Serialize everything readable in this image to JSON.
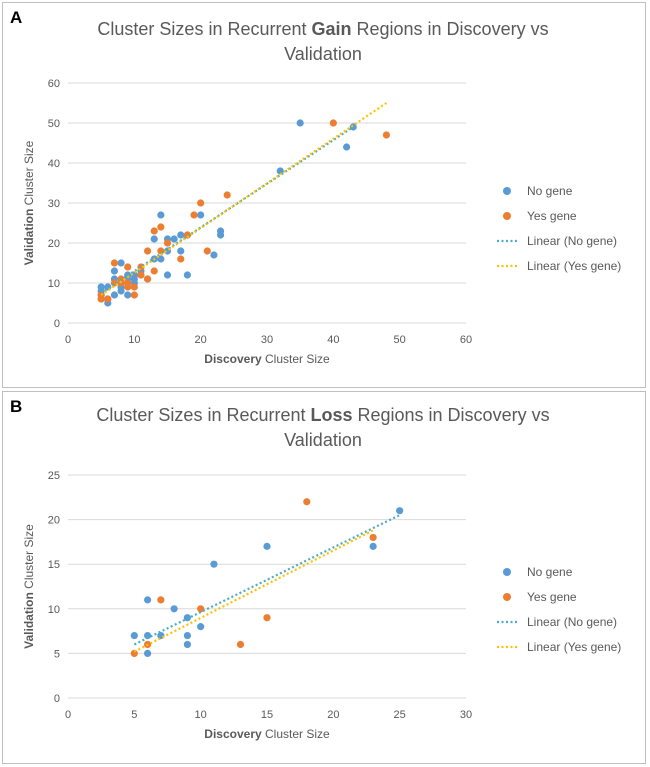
{
  "colors": {
    "no_gene": "#5b9bd5",
    "yes_gene": "#ed7d31",
    "trend_no_gene": "#4bacc6",
    "trend_yes_gene": "#ffc000",
    "gridline": "#d9d9d9",
    "text": "#595959"
  },
  "chart_data": [
    {
      "type": "scatter",
      "panel_label": "A",
      "title_parts": [
        "Cluster Sizes in Recurrent ",
        "Gain",
        " Regions in Discovery vs",
        "Validation"
      ],
      "xlabel_bold": "Discovery",
      "xlabel_rest": " Cluster Size",
      "ylabel_bold": "Validation",
      "ylabel_rest": " Cluster Size",
      "xlim": [
        0,
        60
      ],
      "ylim": [
        0,
        60
      ],
      "xticks": [
        0,
        10,
        20,
        30,
        40,
        50,
        60
      ],
      "yticks": [
        0,
        10,
        20,
        30,
        40,
        50,
        60
      ],
      "grid": "horizontal",
      "legend_position": "right",
      "series": [
        {
          "name": "No gene",
          "points": [
            [
              5,
              9
            ],
            [
              5,
              8
            ],
            [
              5,
              7
            ],
            [
              5,
              6
            ],
            [
              6,
              5
            ],
            [
              6,
              6
            ],
            [
              6,
              9
            ],
            [
              7,
              13
            ],
            [
              7,
              11
            ],
            [
              7,
              7
            ],
            [
              8,
              15
            ],
            [
              8,
              10
            ],
            [
              8,
              9
            ],
            [
              8,
              8
            ],
            [
              9,
              12
            ],
            [
              9,
              11
            ],
            [
              9,
              7
            ],
            [
              10,
              12
            ],
            [
              10,
              11
            ],
            [
              10,
              10
            ],
            [
              11,
              12
            ],
            [
              11,
              13
            ],
            [
              12,
              11
            ],
            [
              13,
              16
            ],
            [
              13,
              21
            ],
            [
              14,
              27
            ],
            [
              14,
              16
            ],
            [
              15,
              21
            ],
            [
              15,
              18
            ],
            [
              15,
              12
            ],
            [
              16,
              21
            ],
            [
              17,
              22
            ],
            [
              17,
              18
            ],
            [
              18,
              22
            ],
            [
              18,
              12
            ],
            [
              20,
              27
            ],
            [
              22,
              17
            ],
            [
              23,
              23
            ],
            [
              23,
              22
            ],
            [
              32,
              38
            ],
            [
              35,
              50
            ],
            [
              42,
              44
            ],
            [
              43,
              49
            ]
          ]
        },
        {
          "name": "Yes gene",
          "points": [
            [
              5,
              7
            ],
            [
              5,
              6
            ],
            [
              6,
              6
            ],
            [
              7,
              15
            ],
            [
              7,
              10
            ],
            [
              8,
              11
            ],
            [
              8,
              10
            ],
            [
              9,
              14
            ],
            [
              9,
              10
            ],
            [
              9,
              9
            ],
            [
              10,
              9
            ],
            [
              10,
              7
            ],
            [
              11,
              14
            ],
            [
              11,
              12
            ],
            [
              12,
              18
            ],
            [
              12,
              11
            ],
            [
              13,
              23
            ],
            [
              13,
              13
            ],
            [
              14,
              24
            ],
            [
              14,
              18
            ],
            [
              15,
              20
            ],
            [
              17,
              16
            ],
            [
              18,
              22
            ],
            [
              19,
              27
            ],
            [
              20,
              30
            ],
            [
              21,
              18
            ],
            [
              24,
              32
            ],
            [
              40,
              50
            ],
            [
              48,
              47
            ]
          ]
        },
        {
          "name": "Linear (No gene)",
          "trendline": true,
          "from": [
            5,
            7.5
          ],
          "to": [
            43,
            49
          ]
        },
        {
          "name": "Linear (Yes gene)",
          "trendline": true,
          "from": [
            5,
            7
          ],
          "to": [
            48,
            55
          ]
        }
      ]
    },
    {
      "type": "scatter",
      "panel_label": "B",
      "title_parts": [
        "Cluster Sizes in Recurrent ",
        "Loss",
        " Regions in Discovery vs",
        "Validation"
      ],
      "xlabel_bold": "Discovery",
      "xlabel_rest": " Cluster Size",
      "ylabel_bold": "Validation",
      "ylabel_rest": " Cluster Size",
      "xlim": [
        0,
        30
      ],
      "ylim": [
        0,
        25
      ],
      "xticks": [
        0,
        5,
        10,
        15,
        20,
        25,
        30
      ],
      "yticks": [
        0,
        5,
        10,
        15,
        20,
        25
      ],
      "grid": "horizontal",
      "legend_position": "right",
      "series": [
        {
          "name": "No gene",
          "points": [
            [
              5,
              7
            ],
            [
              6,
              11
            ],
            [
              6,
              7
            ],
            [
              6,
              5
            ],
            [
              7,
              7
            ],
            [
              8,
              10
            ],
            [
              9,
              9
            ],
            [
              9,
              7
            ],
            [
              9,
              6
            ],
            [
              10,
              8
            ],
            [
              11,
              15
            ],
            [
              15,
              17
            ],
            [
              23,
              17
            ],
            [
              25,
              21
            ]
          ]
        },
        {
          "name": "Yes gene",
          "points": [
            [
              5,
              5
            ],
            [
              6,
              6
            ],
            [
              7,
              11
            ],
            [
              10,
              10
            ],
            [
              13,
              6
            ],
            [
              15,
              9
            ],
            [
              18,
              22
            ],
            [
              23,
              18
            ]
          ]
        },
        {
          "name": "Linear (No gene)",
          "trendline": true,
          "from": [
            5,
            6
          ],
          "to": [
            25,
            20.5
          ]
        },
        {
          "name": "Linear (Yes gene)",
          "trendline": true,
          "from": [
            5,
            5.2
          ],
          "to": [
            23,
            18.8
          ]
        }
      ]
    }
  ]
}
